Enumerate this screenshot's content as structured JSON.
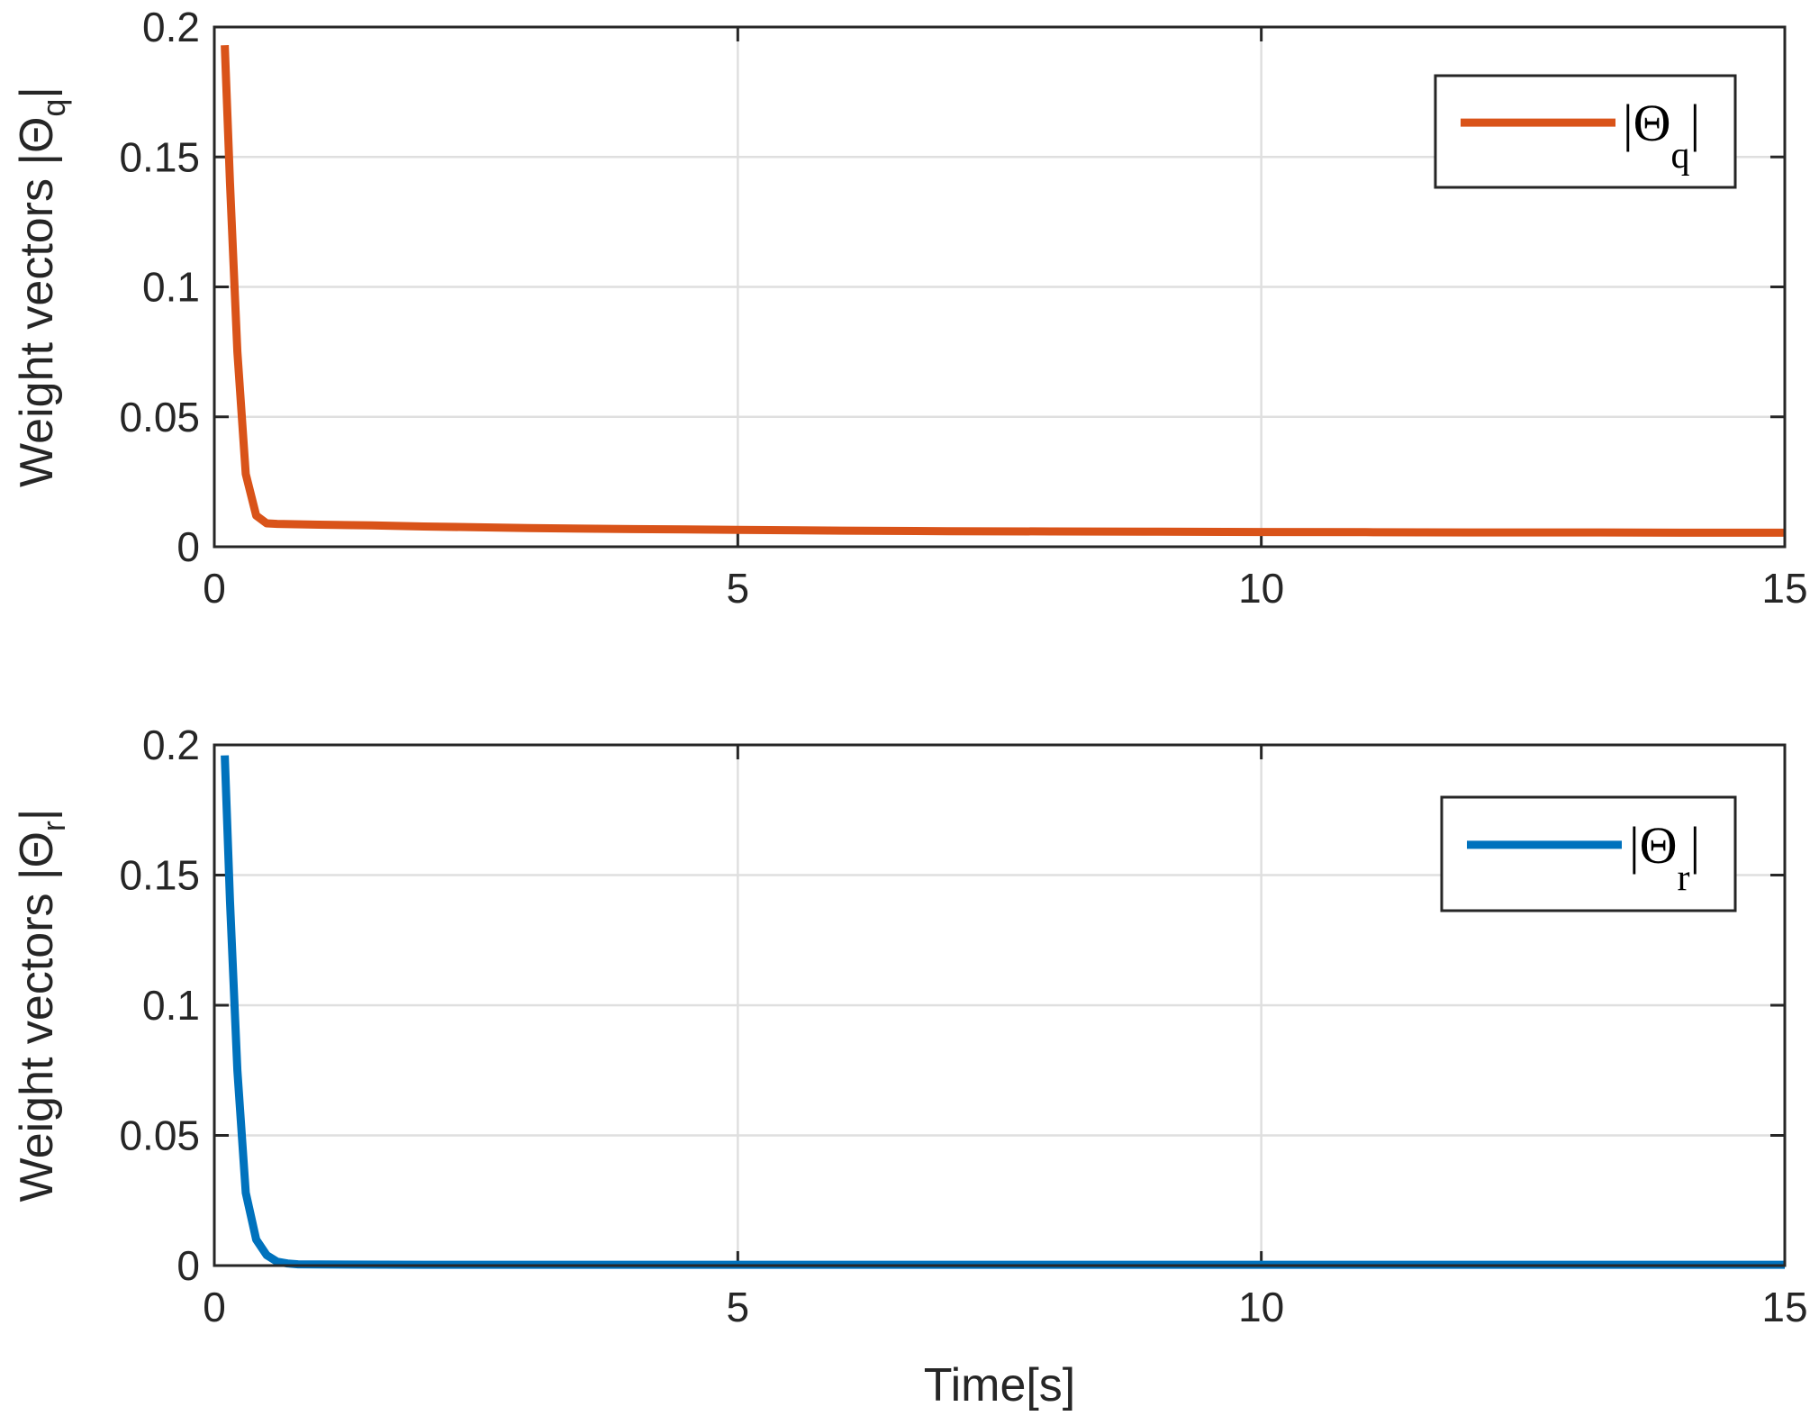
{
  "chart_data": [
    {
      "type": "line",
      "xlabel": "",
      "ylabel": "Weight vectors |Θ_q|",
      "ylabel_parts": {
        "main": "Weight vectors |Θ",
        "sub": "q",
        "end": "|"
      },
      "xlim": [
        0,
        15
      ],
      "ylim": [
        0,
        0.2
      ],
      "x_ticks": [
        "0",
        "5",
        "10",
        "15"
      ],
      "y_ticks": [
        "0",
        "0.05",
        "0.1",
        "0.15",
        "0.2"
      ],
      "grid": true,
      "legend_position": "top-right",
      "series": [
        {
          "name": "|Θq|",
          "legend_parts": {
            "main": "|Θ",
            "sub": "q",
            "end": "|"
          },
          "color": "#D95319",
          "x": [
            0.1,
            0.15,
            0.22,
            0.3,
            0.4,
            0.5,
            0.6,
            1.0,
            1.5,
            2.0,
            3.0,
            4.0,
            5.0,
            6.0,
            7.0,
            8.0,
            9.0,
            10.0,
            11.0,
            12.0,
            13.0,
            14.0,
            15.0
          ],
          "y": [
            0.193,
            0.14,
            0.075,
            0.028,
            0.012,
            0.009,
            0.0088,
            0.0085,
            0.0082,
            0.0078,
            0.0072,
            0.0068,
            0.0065,
            0.0062,
            0.006,
            0.0059,
            0.0058,
            0.0057,
            0.0056,
            0.0055,
            0.0055,
            0.0054,
            0.0054
          ]
        }
      ]
    },
    {
      "type": "line",
      "xlabel": "Time[s]",
      "ylabel": "Weight vectors |Θ_r|",
      "ylabel_parts": {
        "main": "Weight vectors |Θ",
        "sub": "r",
        "end": "|"
      },
      "xlim": [
        0,
        15
      ],
      "ylim": [
        0,
        0.2
      ],
      "x_ticks": [
        "0",
        "5",
        "10",
        "15"
      ],
      "y_ticks": [
        "0",
        "0.05",
        "0.1",
        "0.15",
        "0.2"
      ],
      "grid": true,
      "legend_position": "top-right",
      "series": [
        {
          "name": "|Θr|",
          "legend_parts": {
            "main": "|Θ",
            "sub": "r",
            "end": "|"
          },
          "color": "#0072BD",
          "x": [
            0.1,
            0.15,
            0.22,
            0.3,
            0.4,
            0.5,
            0.6,
            0.7,
            0.8,
            1.0,
            2.0,
            5.0,
            10.0,
            15.0
          ],
          "y": [
            0.196,
            0.14,
            0.075,
            0.028,
            0.01,
            0.004,
            0.0015,
            0.0008,
            0.0005,
            0.0004,
            0.0003,
            0.0003,
            0.0003,
            0.0003
          ]
        }
      ]
    }
  ]
}
